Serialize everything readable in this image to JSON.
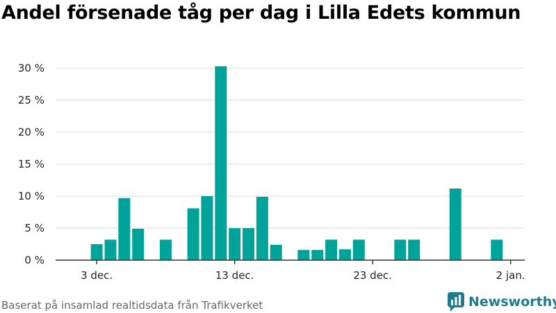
{
  "chart_data": {
    "type": "bar",
    "title": "Andel försenade tåg per dag i Lilla Edets kommun",
    "xlabel": "",
    "ylabel": "",
    "ylim": [
      0,
      30
    ],
    "y_ticks": [
      "0 %",
      "5 %",
      "10 %",
      "15 %",
      "20 %",
      "25 %",
      "30 %"
    ],
    "x_tick_labels": [
      {
        "day_index": 2,
        "label": "3 dec."
      },
      {
        "day_index": 12,
        "label": "13 dec."
      },
      {
        "day_index": 22,
        "label": "23 dec."
      },
      {
        "day_index": 32,
        "label": "2 jan."
      }
    ],
    "days": 32,
    "values": [
      0,
      2.5,
      3.2,
      9.7,
      4.9,
      0,
      3.2,
      0,
      8.1,
      10,
      30.3,
      5,
      5,
      9.9,
      2.4,
      0,
      1.6,
      1.6,
      3.2,
      1.7,
      3.2,
      0,
      0,
      3.2,
      3.2,
      0,
      0,
      11.2,
      0,
      0,
      3.2,
      0
    ],
    "bar_color": "#00a39a",
    "grid": true
  },
  "footer": {
    "source": "Baserat på insamlad realtidsdata från Trafikverket",
    "brand": "Newsworthy",
    "brand_color": "#1f7d8b"
  }
}
